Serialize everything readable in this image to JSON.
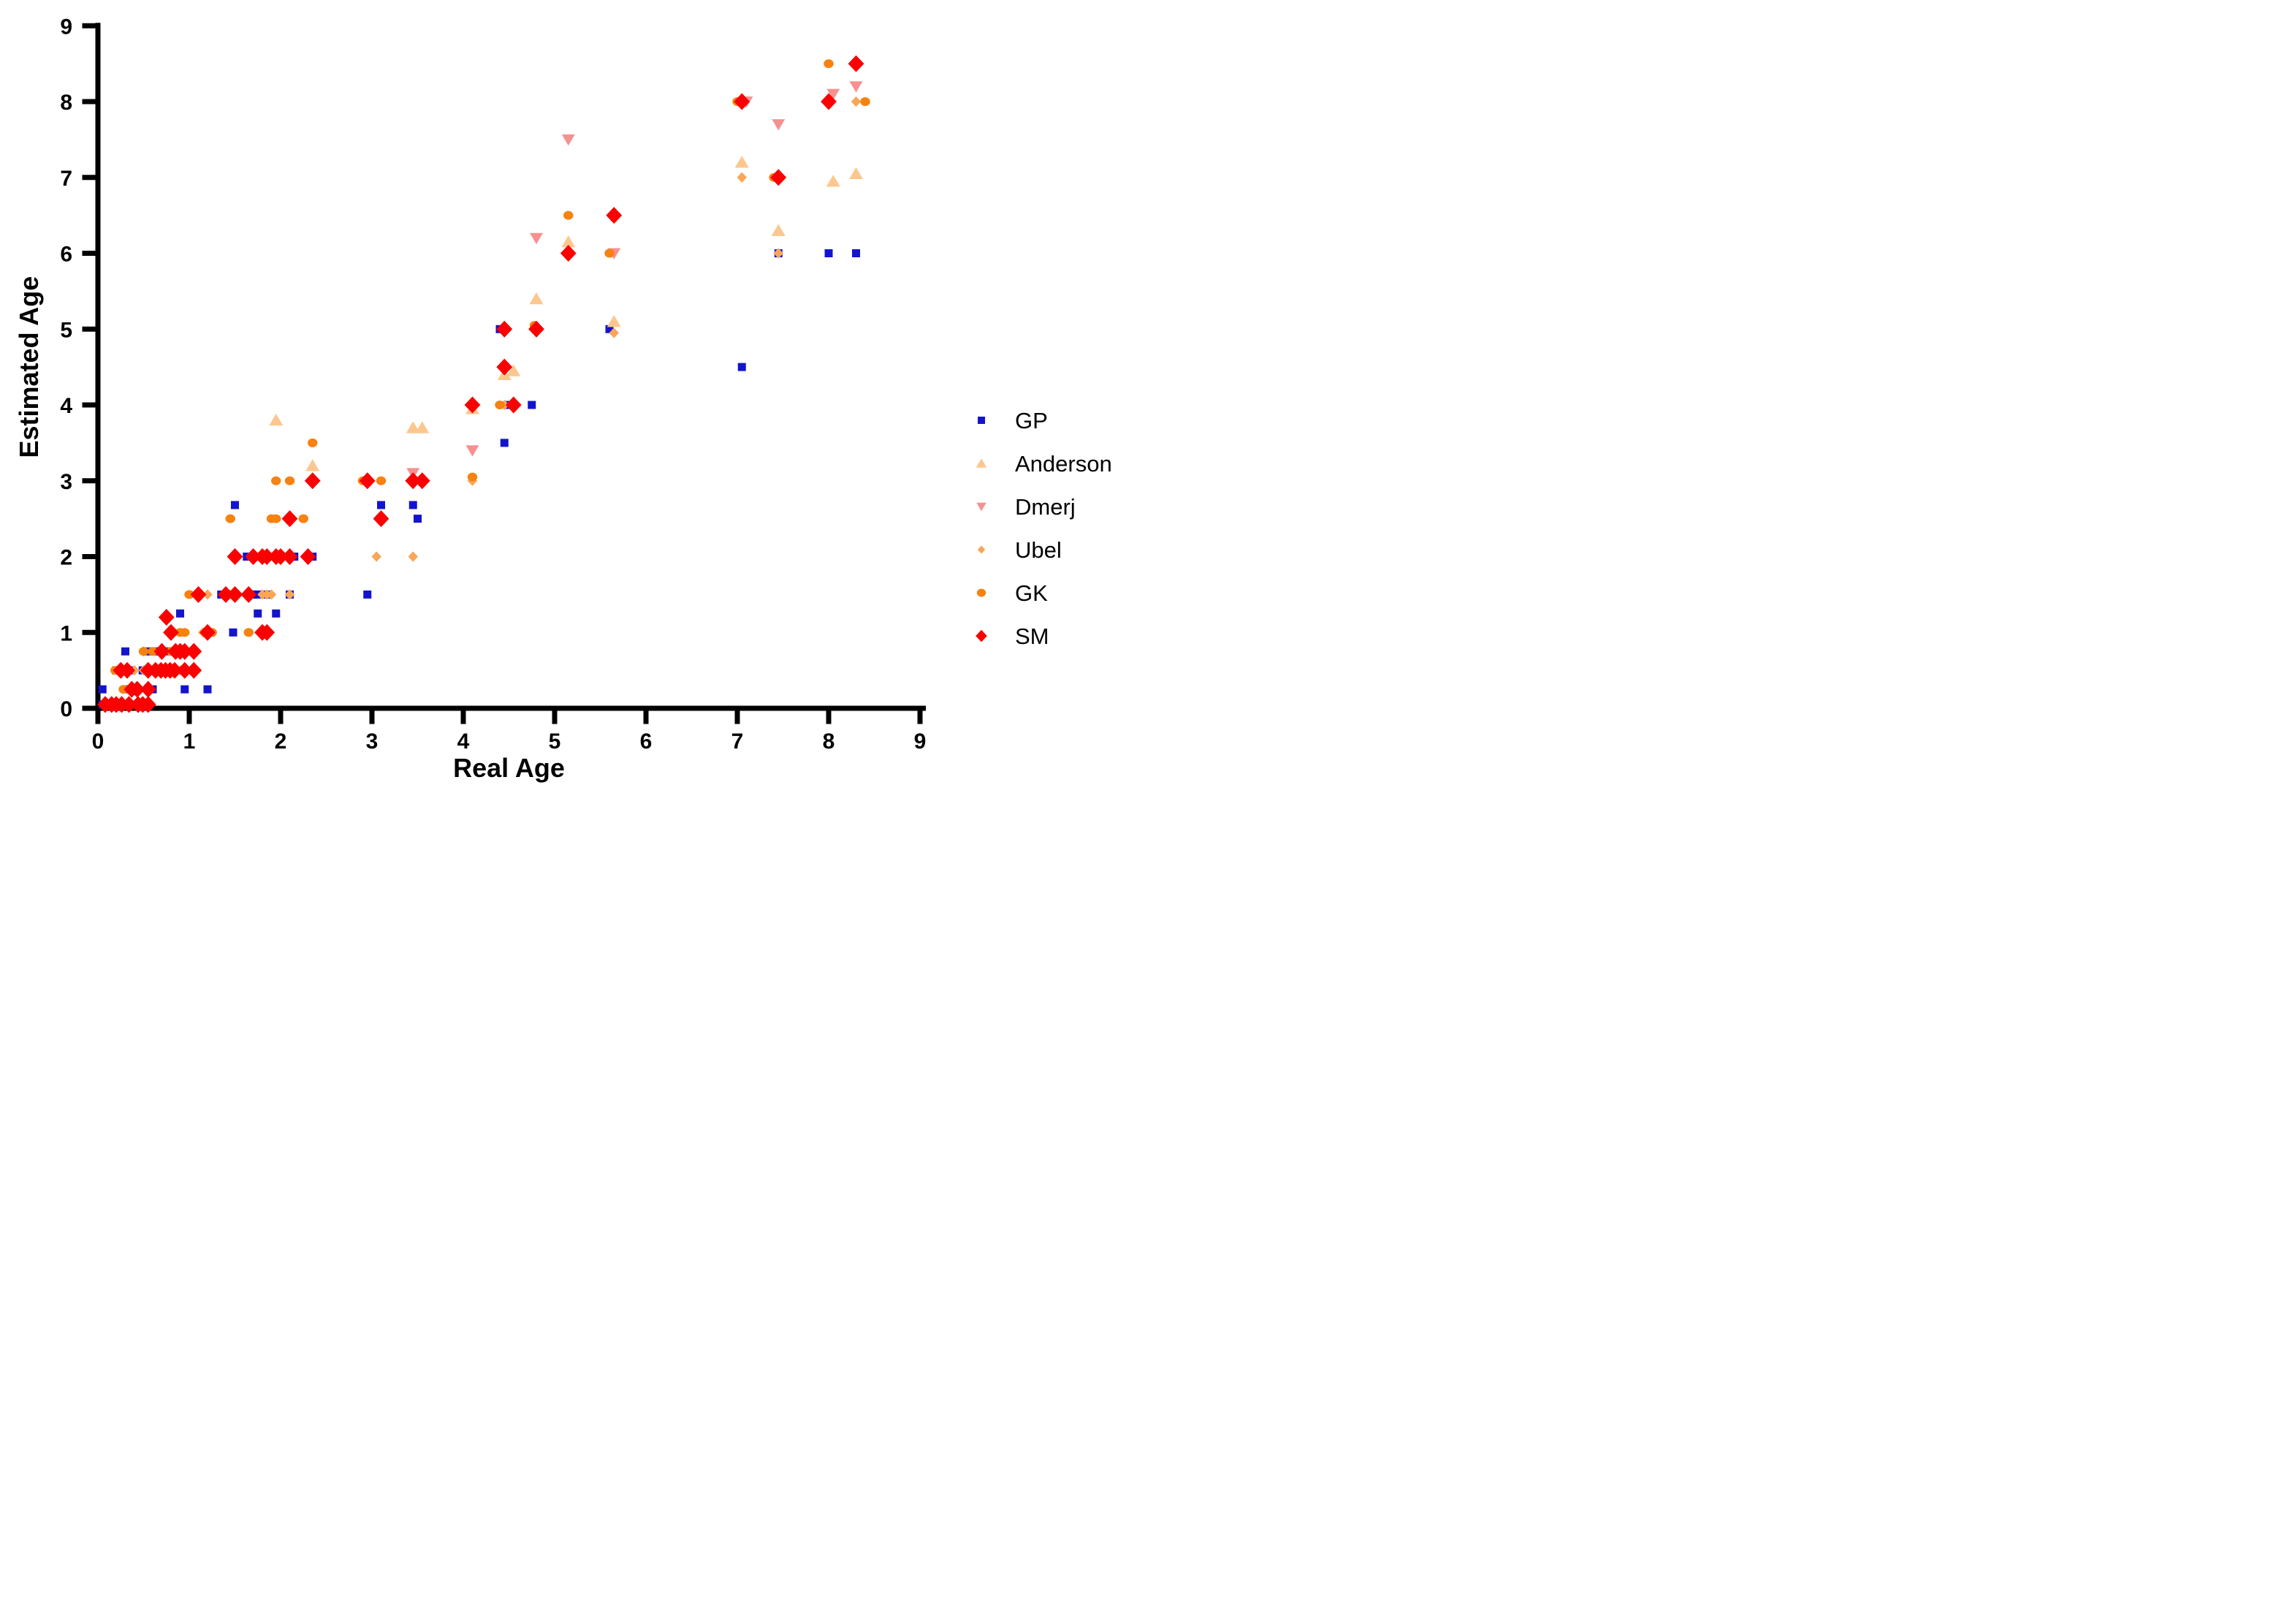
{
  "chart_data": {
    "type": "scatter",
    "title": "",
    "xlabel": "Real Age",
    "ylabel": "Estimated Age",
    "xlim": [
      0,
      9
    ],
    "ylim": [
      0,
      9
    ],
    "xticks": [
      "0",
      "1",
      "2",
      "3",
      "4",
      "5",
      "6",
      "7",
      "8",
      "9"
    ],
    "yticks": [
      "0",
      "1",
      "2",
      "3",
      "4",
      "5",
      "6",
      "7",
      "8",
      "9"
    ],
    "grid": false,
    "legend_position": "right",
    "axis_color": "#000000",
    "background_color": "#ffffff",
    "series": [
      {
        "name": "GP",
        "marker": "square",
        "color": "#1414CD",
        "points": [
          [
            0.05,
            0.05
          ],
          [
            0.42,
            0.05
          ],
          [
            0.05,
            0.25
          ],
          [
            0.35,
            0.25
          ],
          [
            0.6,
            0.25
          ],
          [
            0.95,
            0.25
          ],
          [
            1.2,
            0.25
          ],
          [
            0.2,
            0.5
          ],
          [
            0.37,
            0.5
          ],
          [
            0.49,
            0.5
          ],
          [
            0.95,
            0.5
          ],
          [
            0.3,
            0.75
          ],
          [
            0.55,
            0.75
          ],
          [
            0.65,
            0.75
          ],
          [
            0.75,
            0.75
          ],
          [
            1.48,
            1.0
          ],
          [
            0.9,
            1.25
          ],
          [
            1.75,
            1.25
          ],
          [
            1.95,
            1.25
          ],
          [
            1.1,
            1.5
          ],
          [
            1.35,
            1.5
          ],
          [
            1.7,
            1.5
          ],
          [
            1.75,
            1.5
          ],
          [
            1.85,
            1.5
          ],
          [
            2.1,
            1.5
          ],
          [
            2.95,
            1.5
          ],
          [
            1.5,
            2.0
          ],
          [
            1.63,
            2.0
          ],
          [
            1.95,
            2.0
          ],
          [
            2.15,
            2.0
          ],
          [
            2.35,
            2.0
          ],
          [
            3.5,
            2.5
          ],
          [
            1.5,
            2.68
          ],
          [
            3.1,
            2.68
          ],
          [
            3.45,
            2.68
          ],
          [
            4.1,
            4.0
          ],
          [
            4.45,
            3.5
          ],
          [
            4.5,
            4.0
          ],
          [
            4.75,
            4.0
          ],
          [
            4.4,
            5.0
          ],
          [
            5.6,
            5.0
          ],
          [
            5.15,
            6.0
          ],
          [
            7.45,
            6.0
          ],
          [
            8.0,
            6.0
          ],
          [
            8.3,
            6.0
          ],
          [
            7.05,
            4.5
          ]
        ]
      },
      {
        "name": "Anderson",
        "marker": "triangle-up",
        "color": "#FCC78F",
        "points": [
          [
            1.95,
            3.8
          ],
          [
            2.35,
            3.2
          ],
          [
            3.45,
            3.7
          ],
          [
            3.55,
            3.7
          ],
          [
            4.1,
            3.95
          ],
          [
            4.45,
            4.4
          ],
          [
            4.55,
            4.45
          ],
          [
            4.8,
            5.4
          ],
          [
            5.15,
            6.15
          ],
          [
            5.65,
            5.1
          ],
          [
            7.05,
            7.2
          ],
          [
            7.45,
            6.3
          ],
          [
            8.05,
            6.95
          ],
          [
            8.3,
            7.05
          ]
        ]
      },
      {
        "name": "Dmerj",
        "marker": "triangle-down",
        "color": "#F79090",
        "points": [
          [
            3.45,
            3.1
          ],
          [
            4.1,
            3.4
          ],
          [
            4.8,
            6.2
          ],
          [
            5.15,
            7.5
          ],
          [
            5.65,
            6.0
          ],
          [
            7.1,
            8.0
          ],
          [
            7.45,
            7.7
          ],
          [
            8.05,
            8.1
          ],
          [
            8.3,
            8.2
          ]
        ]
      },
      {
        "name": "Ubel",
        "marker": "diamond",
        "color": "#F9A658",
        "points": [
          [
            0.12,
            0.05
          ],
          [
            0.4,
            0.5
          ],
          [
            0.5,
            0.5
          ],
          [
            0.9,
            0.5
          ],
          [
            0.5,
            0.75
          ],
          [
            0.7,
            0.75
          ],
          [
            1.15,
            1.0
          ],
          [
            1.2,
            1.5
          ],
          [
            1.8,
            1.5
          ],
          [
            1.85,
            1.5
          ],
          [
            1.9,
            1.5
          ],
          [
            2.1,
            1.5
          ],
          [
            3.05,
            2.0
          ],
          [
            3.45,
            2.0
          ],
          [
            4.1,
            3.0
          ],
          [
            4.45,
            4.0
          ],
          [
            5.65,
            4.95
          ],
          [
            7.05,
            7.0
          ],
          [
            7.45,
            6.0
          ],
          [
            8.3,
            8.0
          ]
        ]
      },
      {
        "name": "GK",
        "marker": "circle",
        "color": "#F78210",
        "points": [
          [
            0.2,
            0.05
          ],
          [
            0.35,
            0.05
          ],
          [
            0.28,
            0.25
          ],
          [
            0.4,
            0.25
          ],
          [
            0.19,
            0.5
          ],
          [
            0.3,
            0.5
          ],
          [
            0.7,
            0.5
          ],
          [
            1.05,
            0.5
          ],
          [
            0.5,
            0.75
          ],
          [
            0.6,
            0.75
          ],
          [
            0.8,
            0.75
          ],
          [
            0.9,
            0.75
          ],
          [
            0.9,
            1.0
          ],
          [
            0.95,
            1.0
          ],
          [
            1.25,
            1.0
          ],
          [
            1.65,
            1.0
          ],
          [
            1.0,
            1.5
          ],
          [
            1.45,
            1.5
          ],
          [
            1.68,
            2.0
          ],
          [
            1.77,
            2.0
          ],
          [
            2.1,
            2.0
          ],
          [
            1.45,
            2.5
          ],
          [
            1.9,
            2.5
          ],
          [
            1.95,
            2.5
          ],
          [
            2.25,
            2.5
          ],
          [
            1.95,
            3.0
          ],
          [
            2.1,
            3.0
          ],
          [
            2.9,
            3.0
          ],
          [
            3.1,
            3.0
          ],
          [
            2.35,
            3.5
          ],
          [
            4.1,
            3.05
          ],
          [
            4.4,
            4.0
          ],
          [
            4.78,
            5.05
          ],
          [
            5.15,
            6.5
          ],
          [
            5.6,
            6.0
          ],
          [
            7.0,
            8.0
          ],
          [
            7.4,
            7.0
          ],
          [
            8.0,
            8.5
          ],
          [
            8.4,
            8.0
          ]
        ]
      },
      {
        "name": "SM",
        "marker": "diamond",
        "color": "#FA0000",
        "points": [
          [
            0.08,
            0.05
          ],
          [
            0.15,
            0.05
          ],
          [
            0.2,
            0.05
          ],
          [
            0.26,
            0.05
          ],
          [
            0.34,
            0.05
          ],
          [
            0.44,
            0.05
          ],
          [
            0.49,
            0.05
          ],
          [
            0.55,
            0.05
          ],
          [
            0.37,
            0.25
          ],
          [
            0.43,
            0.25
          ],
          [
            0.55,
            0.25
          ],
          [
            0.25,
            0.5
          ],
          [
            0.32,
            0.5
          ],
          [
            0.55,
            0.5
          ],
          [
            0.63,
            0.5
          ],
          [
            0.69,
            0.5
          ],
          [
            0.74,
            0.5
          ],
          [
            0.79,
            0.5
          ],
          [
            0.84,
            0.5
          ],
          [
            0.95,
            0.5
          ],
          [
            1.05,
            0.5
          ],
          [
            0.7,
            0.75
          ],
          [
            0.85,
            0.75
          ],
          [
            0.9,
            0.75
          ],
          [
            0.95,
            0.75
          ],
          [
            1.05,
            0.75
          ],
          [
            0.8,
            1.0
          ],
          [
            1.2,
            1.0
          ],
          [
            1.8,
            1.0
          ],
          [
            1.85,
            1.0
          ],
          [
            0.75,
            1.2
          ],
          [
            1.1,
            1.5
          ],
          [
            1.4,
            1.5
          ],
          [
            1.5,
            1.5
          ],
          [
            1.65,
            1.5
          ],
          [
            1.5,
            2.0
          ],
          [
            1.7,
            2.0
          ],
          [
            1.8,
            2.0
          ],
          [
            1.85,
            2.0
          ],
          [
            1.95,
            2.0
          ],
          [
            2.0,
            2.0
          ],
          [
            2.1,
            2.0
          ],
          [
            2.3,
            2.0
          ],
          [
            2.1,
            2.5
          ],
          [
            3.1,
            2.5
          ],
          [
            2.35,
            3.0
          ],
          [
            2.95,
            3.0
          ],
          [
            3.45,
            3.0
          ],
          [
            3.55,
            3.0
          ],
          [
            4.1,
            4.0
          ],
          [
            4.55,
            4.0
          ],
          [
            4.45,
            4.5
          ],
          [
            4.45,
            5.0
          ],
          [
            4.8,
            5.0
          ],
          [
            5.15,
            6.0
          ],
          [
            5.65,
            6.5
          ],
          [
            7.05,
            8.0
          ],
          [
            7.45,
            7.0
          ],
          [
            8.0,
            8.0
          ],
          [
            8.3,
            8.5
          ]
        ]
      }
    ]
  }
}
